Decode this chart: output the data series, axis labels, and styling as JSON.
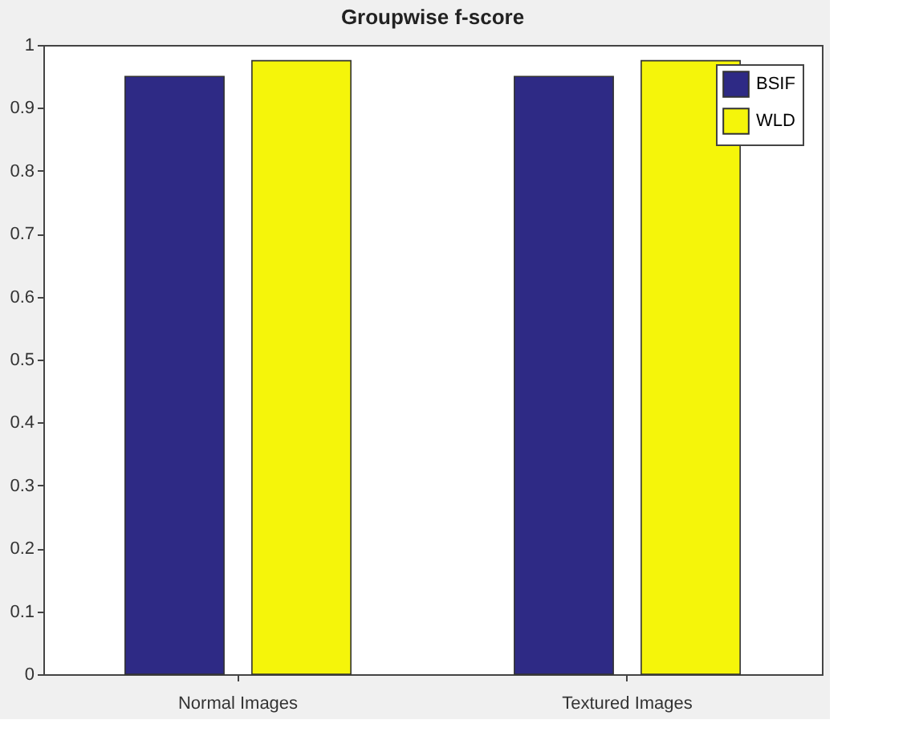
{
  "chart_data": {
    "type": "bar",
    "title": "Groupwise f-score",
    "categories": [
      "Normal Images",
      "Textured Images"
    ],
    "series": [
      {
        "name": "BSIF",
        "color": "#2e2a85",
        "values": [
          0.95,
          0.95
        ]
      },
      {
        "name": "WLD",
        "color": "#f5f50a",
        "values": [
          0.975,
          0.975
        ]
      }
    ],
    "ylim": [
      0,
      1
    ],
    "yticks": [
      0,
      0.1,
      0.2,
      0.3,
      0.4,
      0.5,
      0.6,
      0.7,
      0.8,
      0.9,
      1
    ],
    "grid": false,
    "legend": "top right"
  }
}
